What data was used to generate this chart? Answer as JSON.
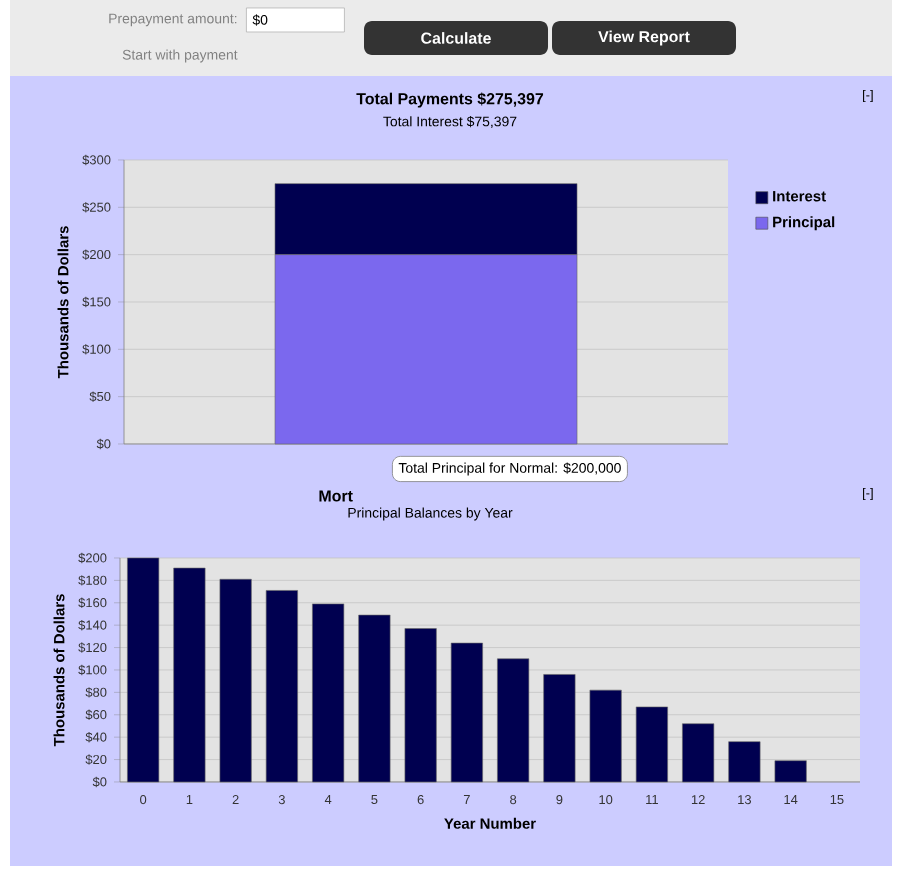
{
  "chart_data": [
    {
      "type": "other",
      "annotations": [
        "Prepayment amount:",
        "$0",
        "Start with payment",
        "Calculate",
        "View Report"
      ]
    },
    {
      "type": "bar",
      "title": "Total Payments $275,397",
      "subtitle": "Total Interest $75,397",
      "ylabel": "Thousands of Dollars",
      "categories": [
        null
      ],
      "stacked": true,
      "series": [
        {
          "name": "Principal",
          "color": "#7b68ee",
          "values": [
            200
          ]
        },
        {
          "name": "Interest",
          "color": "#000050",
          "values": [
            75
          ]
        }
      ],
      "ylim": [
        0,
        300
      ],
      "yticks": [
        {
          "value": 0,
          "label": "$0"
        },
        {
          "value": 50,
          "label": "$50"
        },
        {
          "value": 100,
          "label": "$100"
        },
        {
          "value": 150,
          "label": "$150"
        },
        {
          "value": 200,
          "label": "$200"
        },
        {
          "value": 250,
          "label": "$250"
        },
        {
          "value": 300,
          "label": "$300"
        }
      ],
      "grid": "y",
      "legend": "top right",
      "annotations": [
        {
          "text": "Total Principal for Normal: $200,000",
          "y": 0
        },
        "[-]"
      ]
    },
    {
      "type": "bar",
      "title": "Mort",
      "subtitle": "Principal Balances by Year",
      "xlabel": "Year Number",
      "ylabel": "Thousands of Dollars",
      "categories": [
        "0",
        "1",
        "2",
        "3",
        "4",
        "5",
        "6",
        "7",
        "8",
        "9",
        "10",
        "11",
        "12",
        "13",
        "14",
        "15"
      ],
      "values": [
        200,
        191,
        181,
        171,
        159,
        149,
        137,
        124,
        110,
        96,
        82,
        67,
        52,
        36,
        19,
        null
      ],
      "color": "#000050",
      "ylim": [
        0,
        200
      ],
      "yticks": [
        {
          "value": 0,
          "label": "$0"
        },
        {
          "value": 20,
          "label": "$20"
        },
        {
          "value": 40,
          "label": "$40"
        },
        {
          "value": 60,
          "label": "$60"
        },
        {
          "value": 80,
          "label": "$80"
        },
        {
          "value": 100,
          "label": "$100"
        },
        {
          "value": 120,
          "label": "$120"
        },
        {
          "value": 140,
          "label": "$140"
        },
        {
          "value": 160,
          "label": "$160"
        },
        {
          "value": 180,
          "label": "$180"
        },
        {
          "value": 200,
          "label": "$200"
        }
      ],
      "grid": "y",
      "annotations": [
        "[-]"
      ]
    }
  ]
}
